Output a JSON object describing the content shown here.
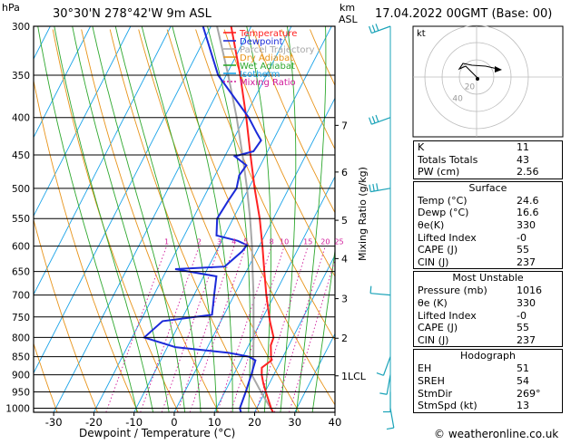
{
  "header": {
    "location": "30°30'N  278°42'W  9m  ASL",
    "datetime": "17.04.2022  00GMT  (Base: 00)",
    "hpa_unit": "hPa",
    "km_unit": "km",
    "asl_unit": "ASL",
    "mixing_ratio_label": "Mixing Ratio (g/kg)",
    "footer": "© weatheronline.co.uk"
  },
  "chart_data": {
    "type": "skew-t",
    "xlabel": "Dewpoint / Temperature (°C)",
    "pressure_ticks": [
      300,
      350,
      400,
      450,
      500,
      550,
      600,
      650,
      700,
      750,
      800,
      850,
      900,
      950,
      1000
    ],
    "pressure_labels": [
      "300",
      "350",
      "400",
      "450",
      "500",
      "550",
      "600",
      "650",
      "700",
      "750",
      "800",
      "850",
      "900",
      "950",
      "1000"
    ],
    "temp_ticks": [
      -30,
      -20,
      -10,
      0,
      10,
      20,
      30,
      40
    ],
    "temp_labels": [
      "-30",
      "-20",
      "-10",
      "0",
      "10",
      "20",
      "30",
      "40"
    ],
    "plim": [
      300,
      1013
    ],
    "tlim": [
      -35,
      40
    ],
    "skew_deg_per_decade": 93,
    "km_ticks": [
      {
        "label": "7",
        "p": 410
      },
      {
        "label": "6",
        "p": 475
      },
      {
        "label": "5",
        "p": 553
      },
      {
        "label": "4",
        "p": 624
      },
      {
        "label": "3",
        "p": 708
      },
      {
        "label": "2",
        "p": 802
      },
      {
        "label": "1LCL",
        "p": 903
      }
    ],
    "mixing_ratio_values": [
      1,
      2,
      3,
      4,
      5,
      8,
      10,
      15,
      20,
      25
    ],
    "mixing_ratio_labels": [
      "1",
      "2",
      "3",
      "4",
      "5",
      "8",
      "10",
      "15",
      "20",
      "25"
    ],
    "temperature": [
      [
        1013,
        24.6
      ],
      [
        1000,
        23.6
      ],
      [
        950,
        20.2
      ],
      [
        925,
        18.5
      ],
      [
        900,
        17.0
      ],
      [
        880,
        16.1
      ],
      [
        860,
        17.6
      ],
      [
        850,
        17.0
      ],
      [
        820,
        15.5
      ],
      [
        800,
        15.2
      ],
      [
        760,
        12.2
      ],
      [
        700,
        8.0
      ],
      [
        650,
        4.5
      ],
      [
        600,
        0.8
      ],
      [
        550,
        -3.4
      ],
      [
        500,
        -8.5
      ],
      [
        450,
        -13.8
      ],
      [
        400,
        -19.6
      ],
      [
        350,
        -26.5
      ],
      [
        300,
        -35.0
      ]
    ],
    "dewpoint": [
      [
        1013,
        16.6
      ],
      [
        1000,
        15.8
      ],
      [
        950,
        15.2
      ],
      [
        900,
        14.4
      ],
      [
        860,
        13.6
      ],
      [
        850,
        11.5
      ],
      [
        840,
        6.0
      ],
      [
        825,
        -8.0
      ],
      [
        800,
        -17.0
      ],
      [
        760,
        -14.5
      ],
      [
        745,
        -3.0
      ],
      [
        700,
        -5.0
      ],
      [
        660,
        -6.8
      ],
      [
        645,
        -18.0
      ],
      [
        640,
        -6.0
      ],
      [
        610,
        -3.6
      ],
      [
        598,
        -3.2
      ],
      [
        590,
        -6.0
      ],
      [
        580,
        -12.0
      ],
      [
        550,
        -14.0
      ],
      [
        520,
        -13.5
      ],
      [
        500,
        -13.0
      ],
      [
        480,
        -14.0
      ],
      [
        465,
        -13.5
      ],
      [
        452,
        -17.5
      ],
      [
        445,
        -13.5
      ],
      [
        430,
        -13.0
      ],
      [
        420,
        -15.0
      ],
      [
        400,
        -19.0
      ],
      [
        350,
        -32.0
      ],
      [
        300,
        -42.0
      ]
    ],
    "parcel": [
      [
        1013,
        24.6
      ],
      [
        950,
        19.0
      ],
      [
        903,
        14.8
      ],
      [
        850,
        12.6
      ],
      [
        800,
        10.2
      ],
      [
        750,
        7.6
      ],
      [
        700,
        4.8
      ],
      [
        650,
        1.6
      ],
      [
        600,
        -1.8
      ],
      [
        550,
        -5.8
      ],
      [
        500,
        -10.4
      ],
      [
        450,
        -15.8
      ],
      [
        400,
        -22.0
      ],
      [
        350,
        -29.5
      ],
      [
        300,
        -38.5
      ]
    ],
    "wind_barbs": [
      {
        "p": 300,
        "dir": 250,
        "spd": 30
      },
      {
        "p": 400,
        "dir": 250,
        "spd": 25
      },
      {
        "p": 500,
        "dir": 260,
        "spd": 25
      },
      {
        "p": 700,
        "dir": 275,
        "spd": 10
      },
      {
        "p": 850,
        "dir": 200,
        "spd": 10
      },
      {
        "p": 900,
        "dir": 190,
        "spd": 10
      },
      {
        "p": 950,
        "dir": 180,
        "spd": 10
      },
      {
        "p": 1000,
        "dir": 170,
        "spd": 10
      }
    ],
    "legend": [
      {
        "label": "Temperature",
        "color": "#ff2222",
        "style": "solid"
      },
      {
        "label": "Dewpoint",
        "color": "#1c2bd9",
        "style": "solid"
      },
      {
        "label": "Parcel Trajectory",
        "color": "#a8a8a8",
        "style": "solid"
      },
      {
        "label": "Dry Adiabat",
        "color": "#e8941a",
        "style": "solid"
      },
      {
        "label": "Wet Adiabat",
        "color": "#2ea82e",
        "style": "solid"
      },
      {
        "label": "Isotherm",
        "color": "#1aa3e8",
        "style": "solid"
      },
      {
        "label": "Mixing Ratio",
        "color": "#d01a9a",
        "style": "dotted"
      }
    ],
    "legend_position": "top-right",
    "colors": {
      "temperature": "#ff2222",
      "dewpoint": "#1c2bd9",
      "parcel": "#a8a8a8",
      "dry_adiabat": "#e8941a",
      "wet_adiabat": "#2ea82e",
      "isotherm": "#1aa3e8",
      "mixing_ratio": "#d01a9a",
      "wind_barb": "#1aa3b8"
    }
  },
  "hodograph": {
    "unit_label": "kt",
    "ring_labels": [
      "20",
      "40"
    ]
  },
  "indices": {
    "top": [
      {
        "label": "K",
        "value": "11"
      },
      {
        "label": "Totals Totals",
        "value": "43"
      },
      {
        "label": "PW (cm)",
        "value": "2.56"
      }
    ],
    "surface": {
      "title": "Surface",
      "rows": [
        {
          "label": "Temp (°C)",
          "value": "24.6"
        },
        {
          "label": "Dewp (°C)",
          "value": "16.6"
        },
        {
          "label": "θe(K)",
          "value": "330"
        },
        {
          "label": "Lifted Index",
          "value": "-0"
        },
        {
          "label": "CAPE (J)",
          "value": "55"
        },
        {
          "label": "CIN (J)",
          "value": "237"
        }
      ]
    },
    "most_unstable": {
      "title": "Most Unstable",
      "rows": [
        {
          "label": "Pressure (mb)",
          "value": "1016"
        },
        {
          "label": "θe (K)",
          "value": "330"
        },
        {
          "label": "Lifted Index",
          "value": "-0"
        },
        {
          "label": "CAPE (J)",
          "value": "55"
        },
        {
          "label": "CIN (J)",
          "value": "237"
        }
      ]
    },
    "hodograph": {
      "title": "Hodograph",
      "rows": [
        {
          "label": "EH",
          "value": "51"
        },
        {
          "label": "SREH",
          "value": "54"
        },
        {
          "label": "StmDir",
          "value": "269°"
        },
        {
          "label": "StmSpd (kt)",
          "value": "13"
        }
      ]
    }
  }
}
